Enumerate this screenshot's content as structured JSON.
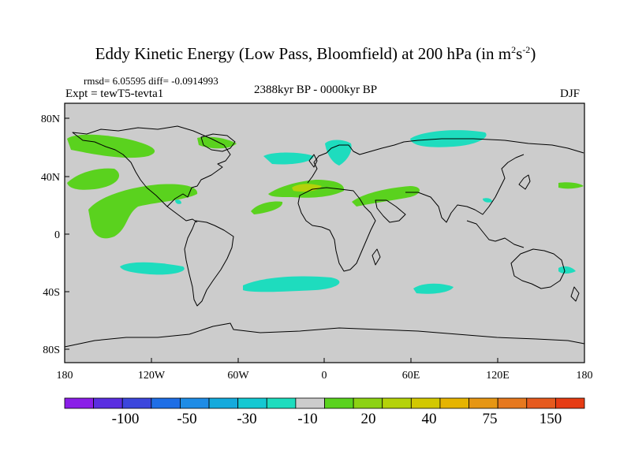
{
  "title": {
    "main": "Eddy Kinetic Energy (Low Pass, Bloomfield) at 200 hPa (in m",
    "sup1": "2",
    "s": "s",
    "sup2": "-2",
    "close": ")"
  },
  "stats": "rmsd= 6.05595 diff= -0.0914993",
  "experiment": "Expt = tewT5-tevta1",
  "period": "2388kyr BP - 0000kyr BP",
  "season": "DJF",
  "lat_labels": [
    "80N",
    "40N",
    "0",
    "40S",
    "80S"
  ],
  "lon_labels": [
    "180",
    "120W",
    "60W",
    "0",
    "60E",
    "120E",
    "180"
  ],
  "colorbar": {
    "colors": [
      "#8a1ee8",
      "#5a2ee0",
      "#3c46dc",
      "#1e6ee6",
      "#1e8ce6",
      "#14aadc",
      "#14c8d2",
      "#1edcbe",
      "#cccccc",
      "#5ad21e",
      "#8cd214",
      "#b4d20a",
      "#d2c800",
      "#e6b400",
      "#e69614",
      "#e6781e",
      "#e65a1e",
      "#e63c14"
    ],
    "labels": [
      "-100",
      "-50",
      "-30",
      "-10",
      "20",
      "40",
      "75",
      "150"
    ]
  },
  "map": {
    "background_color": "#cccccc",
    "coast_color": "#000000",
    "positive_color": "#5ad21e",
    "negative_color": "#1edcbe",
    "warm_color": "#b4d20a"
  }
}
